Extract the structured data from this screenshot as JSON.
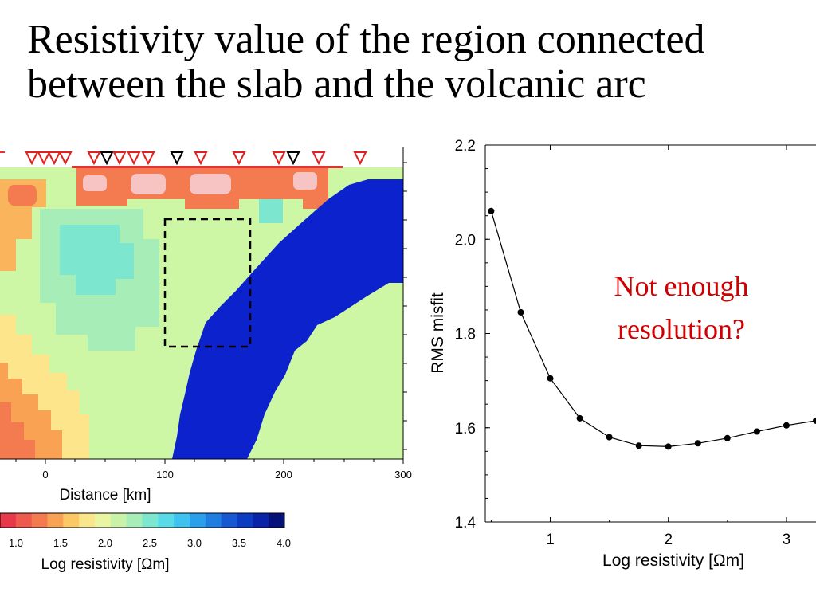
{
  "title": {
    "line1": "Resistivity value of  the region connected",
    "line2": "between the slab and the volcanic arc"
  },
  "section_figure": {
    "xaxis_label": "Distance [km]",
    "xticks": [
      "0",
      "100",
      "200",
      "300"
    ],
    "colorbar": {
      "label": "Log resistivity [Ωm]",
      "ticks": [
        "1.0",
        "1.5",
        "2.0",
        "2.5",
        "3.0",
        "3.5",
        "4.0"
      ],
      "colors": [
        "#e8394a",
        "#ee5a4e",
        "#f47a4f",
        "#f9a254",
        "#fcc865",
        "#fae68a",
        "#e9f5a0",
        "#c8f2a8",
        "#a6edb8",
        "#7de6cf",
        "#58dbe6",
        "#3ec2ef",
        "#2ba0ea",
        "#1f7ee0",
        "#1659d2",
        "#0d3cc3",
        "#0a24a8",
        "#06127a"
      ]
    },
    "station_markers": [
      "red",
      "red",
      "red",
      "red",
      "red",
      "black",
      "red",
      "red",
      "red",
      "black",
      "red",
      "red",
      "red",
      "black",
      "red",
      "red"
    ],
    "slab_color": "#0b22cc",
    "background_color": "#cdf7a4"
  },
  "chart_data": {
    "type": "line",
    "xlabel": "Log resistivity [Ωm]",
    "ylabel": "RMS misfit",
    "xlim": [
      0.45,
      3.25
    ],
    "ylim": [
      1.4,
      2.2
    ],
    "xticks": [
      1,
      2,
      3
    ],
    "yticks": [
      1.4,
      1.6,
      1.8,
      2.0,
      2.2
    ],
    "ytick_labels": [
      "1.4",
      "1.6",
      "1.8",
      "2.0",
      "2.2"
    ],
    "x": [
      0.5,
      0.75,
      1.0,
      1.25,
      1.5,
      1.75,
      2.0,
      2.25,
      2.5,
      2.75,
      3.0,
      3.25
    ],
    "y": [
      2.06,
      1.845,
      1.705,
      1.62,
      1.58,
      1.562,
      1.56,
      1.567,
      1.578,
      1.592,
      1.605,
      1.615
    ],
    "annotation": [
      "Not enough",
      "resolution?"
    ],
    "annotation_color": "#d00000"
  }
}
